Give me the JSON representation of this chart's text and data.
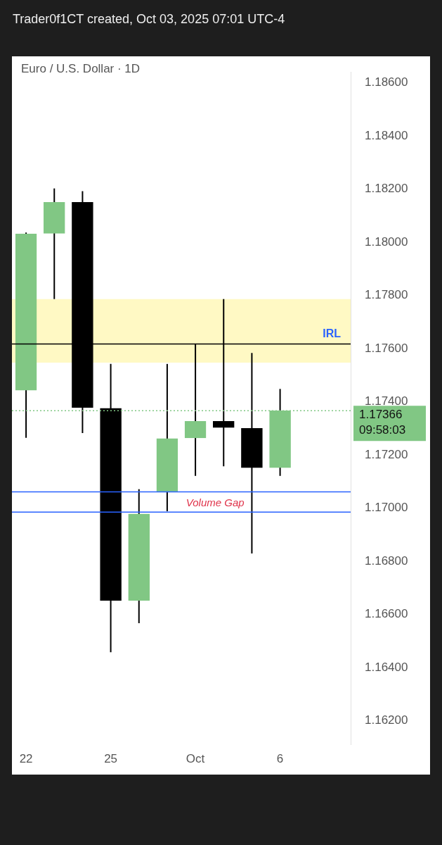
{
  "chart_data": {
    "type": "candlestick",
    "title": "Euro / U.S. Dollar · 1D",
    "subtitle": "Trader0f1CT created, Oct 03, 2025 07:01 UTC-4",
    "categories": [
      "22",
      null,
      null,
      "25",
      null,
      null,
      "Oct",
      null,
      null,
      "6",
      null,
      null
    ],
    "ohlc": [
      [
        1.17443,
        1.18036,
        1.17264,
        1.18031
      ],
      [
        1.18033,
        1.18202,
        1.17786,
        1.1815
      ],
      [
        1.1815,
        1.18192,
        1.17282,
        1.17378
      ],
      [
        1.17375,
        1.17542,
        1.16458,
        1.16653
      ],
      [
        1.16653,
        1.17071,
        1.16567,
        1.16978
      ],
      [
        1.17061,
        1.17542,
        1.16988,
        1.17261
      ],
      [
        1.17264,
        1.17617,
        1.17121,
        1.17326
      ],
      [
        1.17326,
        1.17786,
        1.17157,
        1.17303
      ],
      [
        1.173,
        1.17583,
        1.16829,
        1.17152
      ],
      [
        1.17152,
        1.17448,
        1.17121,
        1.17366
      ],
      null,
      null
    ],
    "colors": [
      "#81c784",
      "#81c784",
      "#000000",
      "#000000",
      "#81c784",
      "#81c784",
      "#81c784",
      "#000000",
      "#000000",
      "#81c784",
      null,
      null
    ],
    "ylim": [
      1.1611,
      1.1864
    ],
    "yticks": [
      {
        "value": 1.162,
        "label": "1.16200"
      },
      {
        "value": 1.164,
        "label": "1.16400"
      },
      {
        "value": 1.166,
        "label": "1.16600"
      },
      {
        "value": 1.168,
        "label": "1.16800"
      },
      {
        "value": 1.17,
        "label": "1.17000"
      },
      {
        "value": 1.172,
        "label": "1.17200"
      },
      {
        "value": 1.174,
        "label": "1.17400"
      },
      {
        "value": 1.176,
        "label": "1.17600"
      },
      {
        "value": 1.178,
        "label": "1.17800"
      },
      {
        "value": 1.18,
        "label": "1.18000"
      },
      {
        "value": 1.182,
        "label": "1.18200"
      },
      {
        "value": 1.184,
        "label": "1.18400"
      },
      {
        "value": 1.186,
        "label": "1.18600"
      }
    ],
    "bands": [
      {
        "axis": "y",
        "from": 1.17547,
        "to": 1.17786,
        "color": "#fff9c4"
      }
    ],
    "ref_lines": [
      {
        "axis": "y",
        "value": 1.17617,
        "label": "IRL",
        "color": "#000000"
      },
      {
        "axis": "y",
        "value": 1.17061,
        "color": "#2962ff"
      },
      {
        "axis": "y",
        "value": 1.16985,
        "label": "Volume Gap",
        "color": "#2962ff"
      },
      {
        "axis": "y",
        "value": 1.17366,
        "label": "1.17366",
        "color": "#81c784",
        "line_style": "dotted"
      }
    ],
    "annotations": [
      "09:58:03"
    ],
    "grid": false,
    "legend": false
  }
}
